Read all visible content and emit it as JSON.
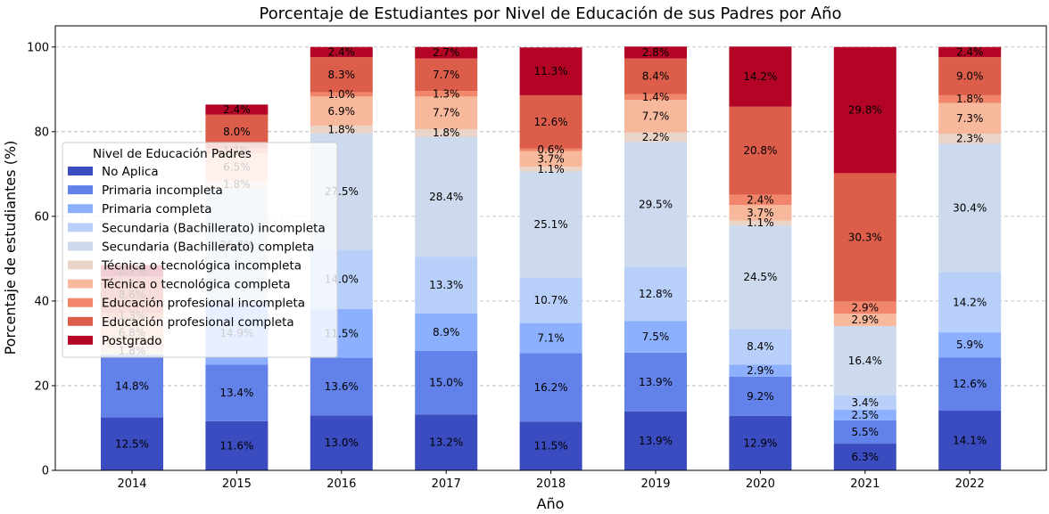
{
  "chart_data": {
    "type": "bar",
    "stacked": true,
    "title": "Porcentaje de Estudiantes por Nivel de Educación de sus Padres por Año",
    "xlabel": "Año",
    "ylabel": "Porcentaje de estudiantes (%)",
    "ylim": [
      0,
      105
    ],
    "yticks": [
      0,
      20,
      40,
      60,
      80,
      100
    ],
    "grid": "horizontal-dashed",
    "categories": [
      "2014",
      "2015",
      "2016",
      "2017",
      "2018",
      "2019",
      "2020",
      "2021",
      "2022"
    ],
    "legend": {
      "title": "Nivel de Educación Padres",
      "placement": "center-left"
    },
    "series": [
      {
        "name": "No Aplica",
        "color": "#3b4cc0",
        "values": [
          12.5,
          11.6,
          13.0,
          13.2,
          11.5,
          13.9,
          12.9,
          6.3,
          14.1
        ]
      },
      {
        "name": "Primaria incompleta",
        "color": "#6282ea",
        "values": [
          14.8,
          13.4,
          13.6,
          15.0,
          16.2,
          13.9,
          9.2,
          5.5,
          12.6
        ]
      },
      {
        "name": "Primaria completa",
        "color": "#8db0fe",
        "values": [
          null,
          14.9,
          11.5,
          8.9,
          7.1,
          7.5,
          2.9,
          2.5,
          5.9
        ]
      },
      {
        "name": "Secundaria (Bachillerato) incompleta",
        "color": "#b8d0f9",
        "values": [
          null,
          null,
          14.0,
          13.3,
          10.7,
          12.8,
          8.4,
          3.4,
          14.2
        ]
      },
      {
        "name": "Secundaria (Bachillerato) completa",
        "color": "#cdd9ec",
        "values": [
          null,
          26.7,
          27.5,
          28.4,
          25.1,
          29.5,
          24.5,
          16.4,
          30.4
        ]
      },
      {
        "name": "Técnica o tecnológica incompleta",
        "color": "#ead4c8",
        "values": [
          1.8,
          1.8,
          1.8,
          1.8,
          1.1,
          2.2,
          1.1,
          0.0,
          2.3
        ]
      },
      {
        "name": "Técnica o tecnológica completa",
        "color": "#f7b89c",
        "values": [
          6.8,
          6.5,
          6.9,
          7.7,
          3.7,
          7.7,
          3.7,
          2.9,
          7.3
        ]
      },
      {
        "name": "Educación profesional incompleta",
        "color": "#f2866c",
        "values": [
          1.3,
          1.1,
          1.0,
          1.3,
          0.6,
          1.4,
          2.4,
          2.9,
          1.8
        ]
      },
      {
        "name": "Educación profesional completa",
        "color": "#dc5d4a",
        "values": [
          8.6,
          8.0,
          8.3,
          7.7,
          12.6,
          8.4,
          20.8,
          30.3,
          9.0
        ]
      },
      {
        "name": "Postgrado",
        "color": "#b40426",
        "values": [
          2.7,
          2.4,
          2.4,
          2.7,
          11.3,
          2.8,
          14.2,
          29.8,
          2.4
        ]
      }
    ]
  }
}
